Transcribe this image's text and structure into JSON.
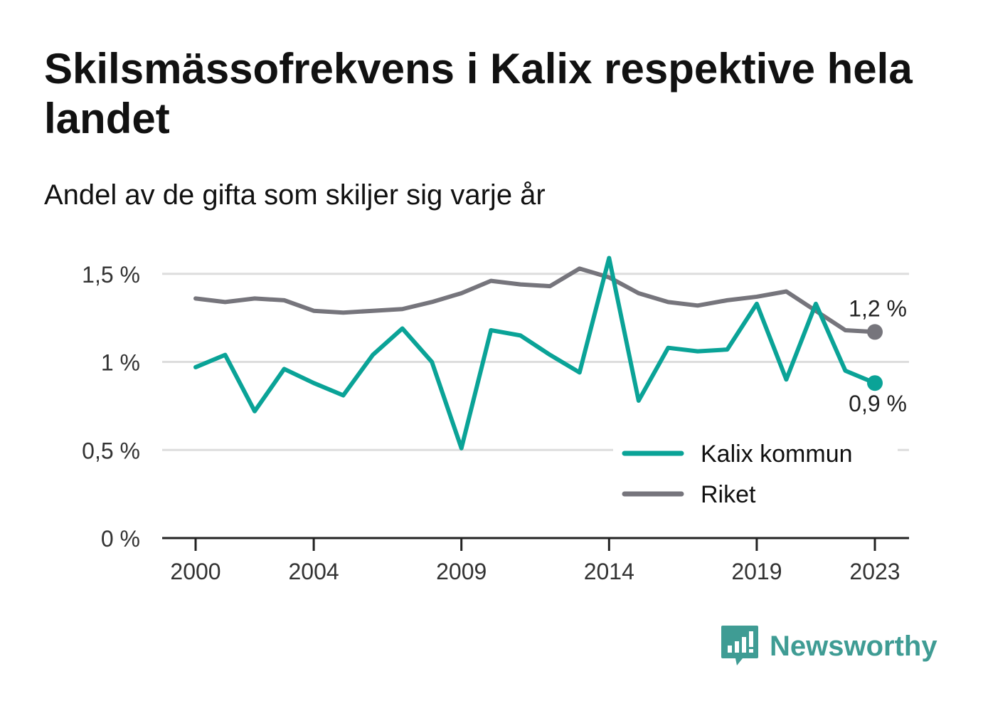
{
  "title": "Skilsmässofrekvens i Kalix respektive hela landet",
  "subtitle": "Andel av de gifta som skiljer sig varje år",
  "brand": {
    "name": "Newsworthy",
    "icon": "bar-chart-logo-icon"
  },
  "colors": {
    "kalix": "#0aa397",
    "riket": "#76757c",
    "grid": "#dddddd",
    "axis": "#222222",
    "brand": "#3f9c94"
  },
  "chart_data": {
    "type": "line",
    "title": "Skilsmässofrekvens i Kalix respektive hela landet",
    "subtitle": "Andel av de gifta som skiljer sig varje år",
    "xlabel": "",
    "ylabel": "",
    "x": [
      2000,
      2001,
      2002,
      2003,
      2004,
      2005,
      2006,
      2007,
      2008,
      2009,
      2010,
      2011,
      2012,
      2013,
      2014,
      2015,
      2016,
      2017,
      2018,
      2019,
      2020,
      2021,
      2022,
      2023
    ],
    "x_tick_labels": [
      "2000",
      "2004",
      "2009",
      "2014",
      "2019",
      "2023"
    ],
    "x_tick_values": [
      2000,
      2004,
      2009,
      2014,
      2019,
      2023
    ],
    "ylim": [
      0,
      1.6
    ],
    "y_ticks": [
      0,
      0.5,
      1,
      1.5
    ],
    "y_tick_labels": [
      "0 %",
      "0,5 %",
      "1 %",
      "1,5 %"
    ],
    "grid": true,
    "legend_position": "bottom-right",
    "series": [
      {
        "name": "Kalix kommun",
        "key": "kalix",
        "values": [
          0.97,
          1.04,
          0.72,
          0.96,
          0.88,
          0.81,
          1.04,
          1.19,
          1.0,
          0.51,
          1.18,
          1.15,
          1.04,
          0.94,
          1.59,
          0.78,
          1.08,
          1.06,
          1.07,
          1.33,
          0.9,
          1.33,
          0.95,
          0.88
        ],
        "end_label": "0,9 %"
      },
      {
        "name": "Riket",
        "key": "riket",
        "values": [
          1.36,
          1.34,
          1.36,
          1.35,
          1.29,
          1.28,
          1.29,
          1.3,
          1.34,
          1.39,
          1.46,
          1.44,
          1.43,
          1.53,
          1.48,
          1.39,
          1.34,
          1.32,
          1.35,
          1.37,
          1.4,
          1.29,
          1.18,
          1.17
        ],
        "end_label": "1,2 %"
      }
    ]
  }
}
